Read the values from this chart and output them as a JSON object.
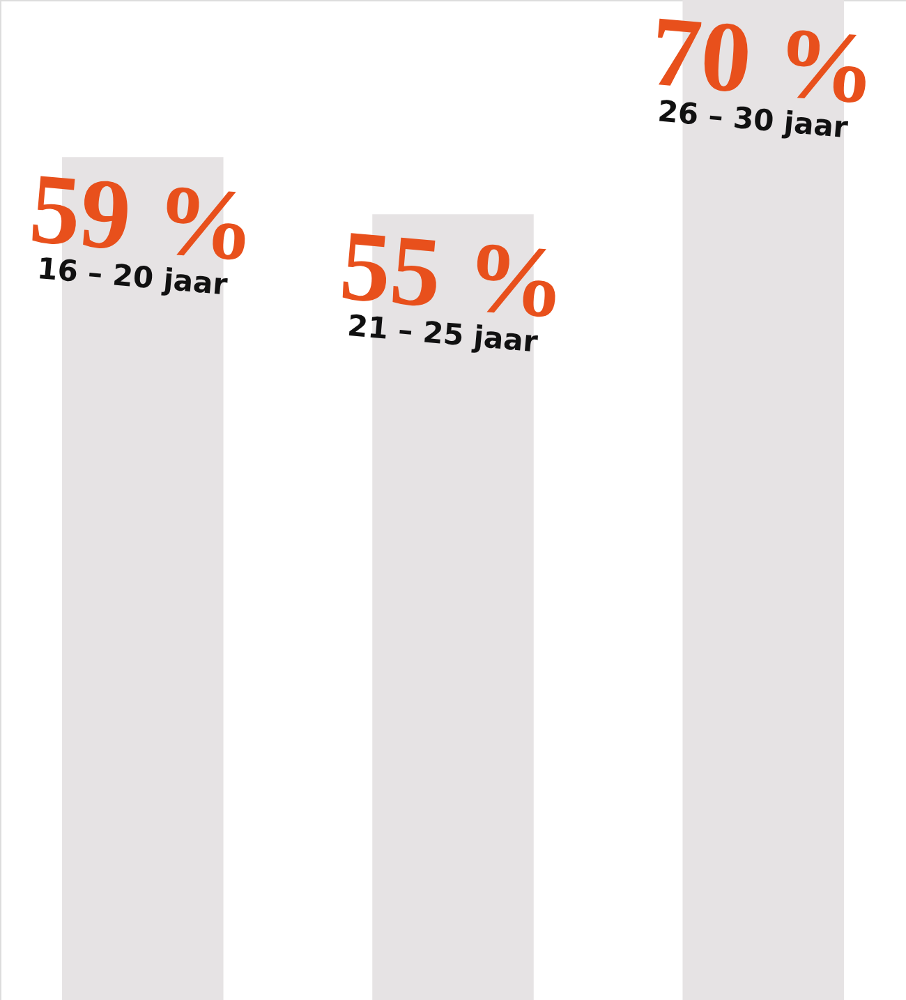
{
  "chart_data": {
    "type": "bar",
    "categories": [
      "16 – 20 jaar",
      "21 – 25 jaar",
      "26 – 30 jaar"
    ],
    "values": [
      59,
      55,
      70
    ],
    "color": "#e6e3e4",
    "value_labels": [
      "59 %",
      "55 %",
      "70 %"
    ],
    "tick_labels": false,
    "grid": false
  }
}
